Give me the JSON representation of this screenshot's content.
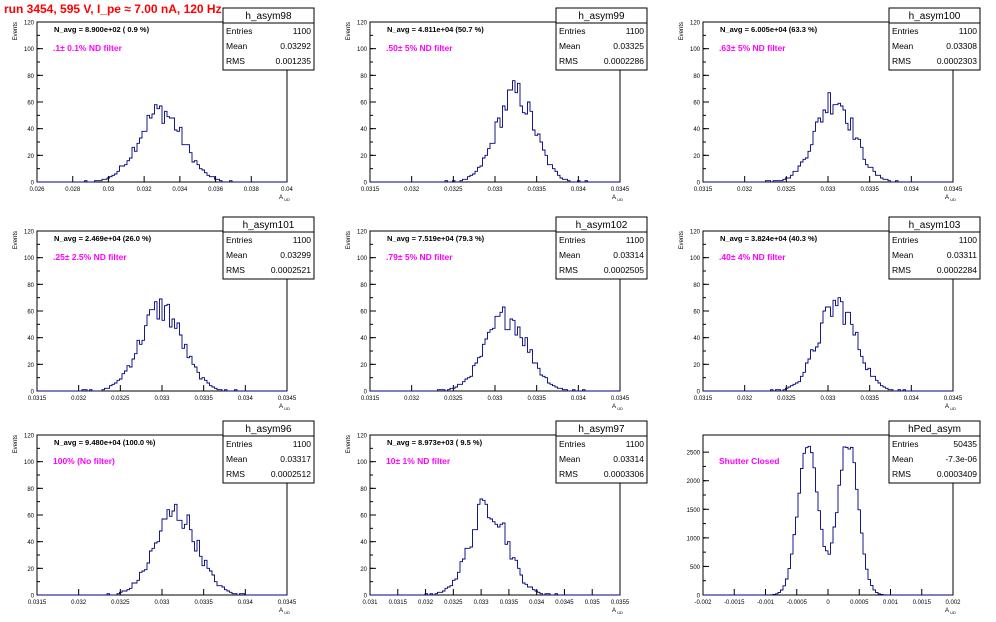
{
  "title": "run 3454,   595 V, I_pe ≈ 7.00 nA, 120 Hz",
  "stat_labels": {
    "entries": "Entries",
    "mean": "Mean",
    "rms": "RMS"
  },
  "colors": {
    "title": "#ff0000",
    "histogram": "#00007f",
    "annotation": "#ff00ff",
    "frame": "#000000"
  },
  "y_axis_label": "Events",
  "chart_data": [
    {
      "type": "histogram",
      "name": "h_asym98",
      "entries": "1100",
      "mean": "0.03292",
      "rms": "0.001235",
      "navg": "N_avg = 8.900e+02 ( 0.9 %)",
      "note": ".1± 0.1% ND filter",
      "xlabel": "A_UD",
      "ylabel": "Events",
      "xlim": [
        0.026,
        0.04
      ],
      "ylim": [
        0,
        120
      ],
      "xticks": [
        "0.026",
        "0.028",
        "0.03",
        "0.032",
        "0.034",
        "0.036",
        "0.038",
        "0.04"
      ],
      "yticks": [
        "0",
        "20",
        "40",
        "60",
        "80",
        "100",
        "120"
      ],
      "center": 0.03292,
      "sigma": 0.001235,
      "peak": 53
    },
    {
      "type": "histogram",
      "name": "h_asym99",
      "entries": "1100",
      "mean": "0.03325",
      "rms": "0.0002286",
      "navg": "N_avg = 4.811e+04 (50.7 %)",
      "note": ".50± 5% ND filter",
      "xlabel": "A_UD",
      "ylabel": "Events",
      "xlim": [
        0.0315,
        0.0345
      ],
      "ylim": [
        0,
        120
      ],
      "xticks": [
        "0.0315",
        "0.032",
        "0.0325",
        "0.033",
        "0.0335",
        "0.034",
        "0.0345"
      ],
      "yticks": [
        "0",
        "20",
        "40",
        "60",
        "80",
        "100",
        "120"
      ],
      "center": 0.03325,
      "sigma": 0.0002286,
      "peak": 66
    },
    {
      "type": "histogram",
      "name": "h_asym100",
      "entries": "1100",
      "mean": "0.03308",
      "rms": "0.0002303",
      "navg": "N_avg = 6.005e+04 (63.3 %)",
      "note": ".63± 5% ND filter",
      "xlabel": "A_UD",
      "ylabel": "Events",
      "xlim": [
        0.0315,
        0.0345
      ],
      "ylim": [
        0,
        120
      ],
      "xticks": [
        "0.0315",
        "0.032",
        "0.0325",
        "0.033",
        "0.0335",
        "0.034",
        "0.0345"
      ],
      "yticks": [
        "0",
        "20",
        "40",
        "60",
        "80",
        "100",
        "120"
      ],
      "center": 0.03308,
      "sigma": 0.0002303,
      "peak": 63
    },
    {
      "type": "histogram",
      "name": "h_asym101",
      "entries": "1100",
      "mean": "0.03299",
      "rms": "0.0002521",
      "navg": "N_avg = 2.469e+04 (26.0 %)",
      "note": ".25± 2.5% ND filter",
      "xlabel": "A_UD",
      "ylabel": "Events",
      "xlim": [
        0.0315,
        0.0345
      ],
      "ylim": [
        0,
        120
      ],
      "xticks": [
        "0.0315",
        "0.032",
        "0.0325",
        "0.033",
        "0.0335",
        "0.034",
        "0.0345"
      ],
      "yticks": [
        "0",
        "20",
        "40",
        "60",
        "80",
        "100",
        "120"
      ],
      "center": 0.03299,
      "sigma": 0.0002521,
      "peak": 62
    },
    {
      "type": "histogram",
      "name": "h_asym102",
      "entries": "1100",
      "mean": "0.03314",
      "rms": "0.0002505",
      "navg": "N_avg = 7.519e+04 (79.3 %)",
      "note": ".79± 5% ND filter",
      "xlabel": "A_UD",
      "ylabel": "Events",
      "xlim": [
        0.0315,
        0.0345
      ],
      "ylim": [
        0,
        120
      ],
      "xticks": [
        "0.0315",
        "0.032",
        "0.0325",
        "0.033",
        "0.0335",
        "0.034",
        "0.0345"
      ],
      "yticks": [
        "0",
        "20",
        "40",
        "60",
        "80",
        "100",
        "120"
      ],
      "center": 0.03314,
      "sigma": 0.0002505,
      "peak": 56
    },
    {
      "type": "histogram",
      "name": "h_asym103",
      "entries": "1100",
      "mean": "0.03311",
      "rms": "0.0002284",
      "navg": "N_avg = 3.824e+04 (40.3 %)",
      "note": ".40± 4% ND filter",
      "xlabel": "A_UD",
      "ylabel": "Events",
      "xlim": [
        0.0315,
        0.0345
      ],
      "ylim": [
        0,
        120
      ],
      "xticks": [
        "0.0315",
        "0.032",
        "0.0325",
        "0.033",
        "0.0335",
        "0.034",
        "0.0345"
      ],
      "yticks": [
        "0",
        "20",
        "40",
        "60",
        "80",
        "100",
        "120"
      ],
      "center": 0.03311,
      "sigma": 0.0002284,
      "peak": 65
    },
    {
      "type": "histogram",
      "name": "h_asym96",
      "entries": "1100",
      "mean": "0.03317",
      "rms": "0.0002512",
      "navg": "N_avg = 9.480e+04 (100.0 %)",
      "note": "100% (No filter)",
      "xlabel": "A_UD",
      "ylabel": "Events",
      "xlim": [
        0.0315,
        0.0345
      ],
      "ylim": [
        0,
        120
      ],
      "xticks": [
        "0.0315",
        "0.032",
        "0.0325",
        "0.033",
        "0.0335",
        "0.034",
        "0.0345"
      ],
      "yticks": [
        "0",
        "20",
        "40",
        "60",
        "80",
        "100",
        "120"
      ],
      "center": 0.03317,
      "sigma": 0.0002512,
      "peak": 62
    },
    {
      "type": "histogram",
      "name": "h_asym97",
      "entries": "1100",
      "mean": "0.03314",
      "rms": "0.0003306",
      "navg": "N_avg = 8.973e+03 ( 9.5 %)",
      "note": "10± 1% ND filter",
      "xlabel": "A_UD",
      "ylabel": "Events",
      "xlim": [
        0.031,
        0.0355
      ],
      "ylim": [
        0,
        120
      ],
      "xticks": [
        "0.031",
        "0.0315",
        "0.032",
        "0.0325",
        "0.033",
        "0.0335",
        "0.034",
        "0.0345",
        "0.035",
        "0.0355"
      ],
      "yticks": [
        "0",
        "20",
        "40",
        "60",
        "80",
        "100",
        "120"
      ],
      "center": 0.03314,
      "sigma": 0.0003306,
      "peak": 68
    },
    {
      "type": "histogram",
      "name": "hPed_asym",
      "entries": "50435",
      "mean": "-7.3e-06",
      "rms": "0.0003409",
      "navg": "",
      "note": "Shutter Closed",
      "xlabel": "A_UD",
      "ylabel": "",
      "xlim": [
        -0.002,
        0.002
      ],
      "ylim": [
        0,
        2800
      ],
      "xticks": [
        "-0.002",
        "-0.0015",
        "-0.001",
        "-0.0005",
        "0",
        "0.0005",
        "0.001",
        "0.0015",
        "0.002"
      ],
      "yticks": [
        "0",
        "500",
        "1000",
        "1500",
        "2000",
        "2500"
      ],
      "bimodal": [
        -0.00032,
        0.00032
      ],
      "sigma": 0.00016,
      "peak": 2700
    }
  ]
}
